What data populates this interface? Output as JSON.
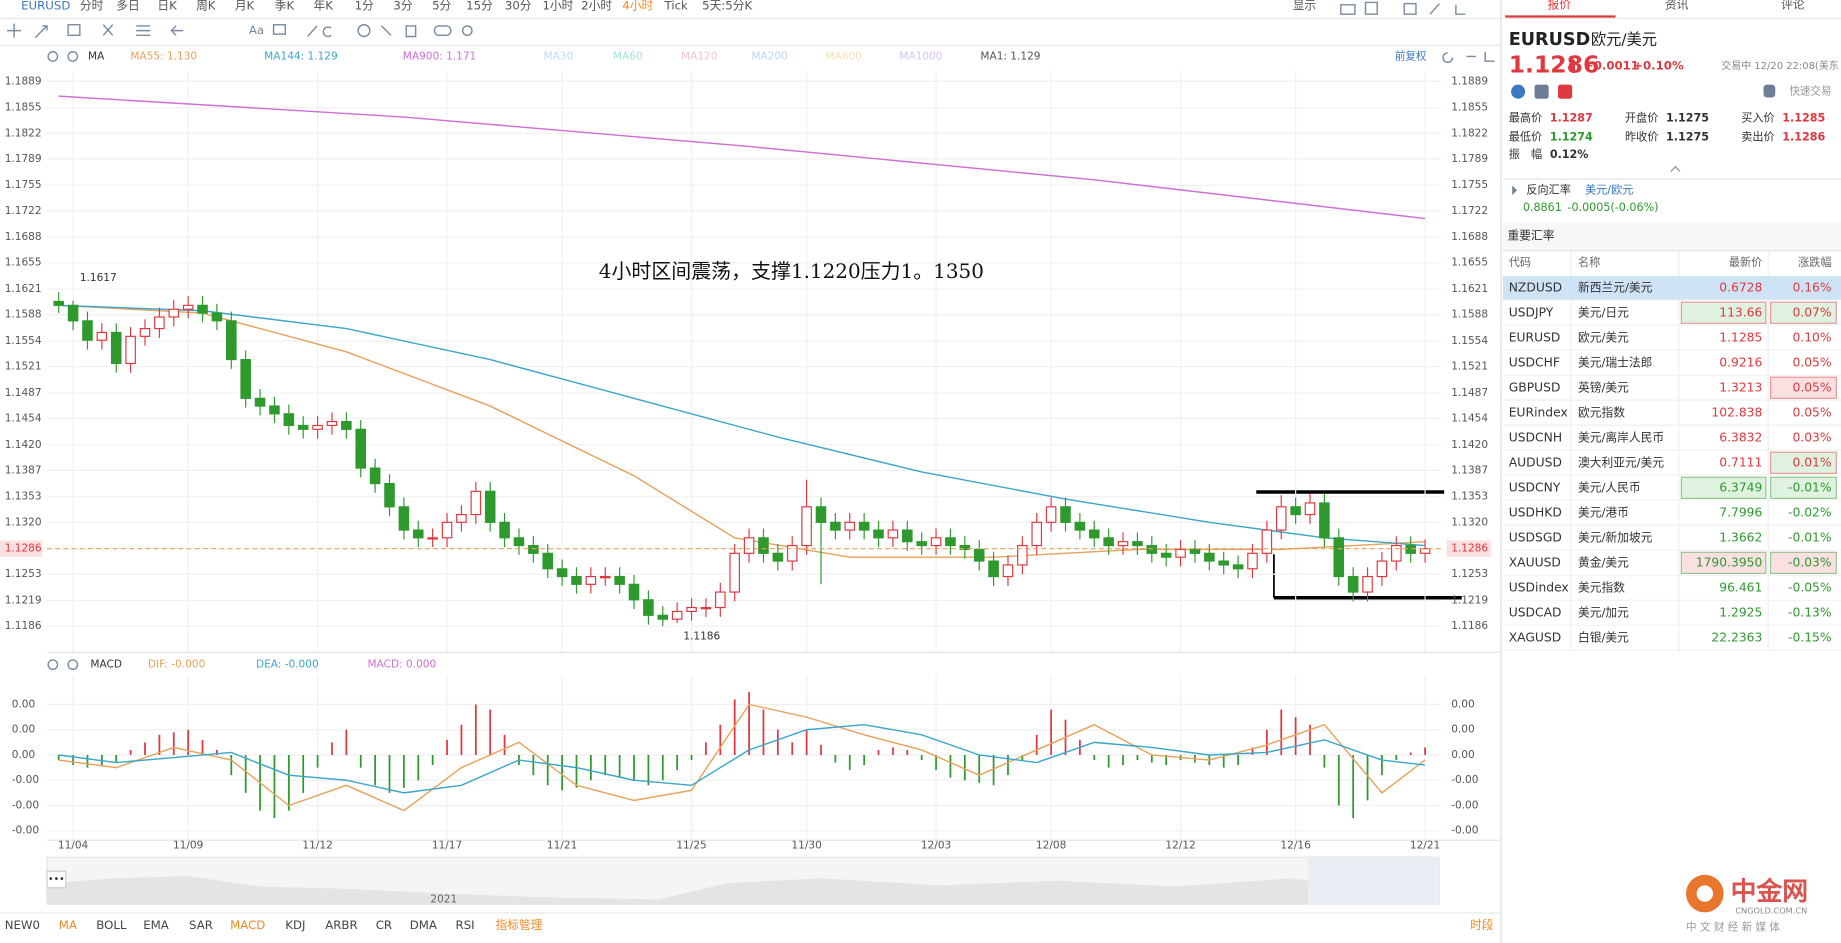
{
  "toolbar": {
    "symbol": "EURUSD",
    "periods": [
      "分时",
      "多日",
      "日K",
      "周K",
      "月K",
      "季K",
      "年K",
      "1分",
      "3分",
      "5分",
      "15分",
      "30分",
      "1小时",
      "2小时",
      "4小时",
      "Tick",
      "5天:5分K"
    ],
    "display": "显示",
    "text_tool": "Aa"
  },
  "chart_data": {
    "type": "candlestick",
    "ma_title": "MA",
    "adjust": "前复权",
    "ma": [
      {
        "label": "MA55: 1.130",
        "color": "#e8a15a",
        "x": [
          0,
          10,
          20,
          30,
          40,
          47,
          55,
          65,
          75,
          85,
          95
        ],
        "values": [
          1.16,
          1.159,
          1.154,
          1.147,
          1.138,
          1.13,
          1.1275,
          1.1275,
          1.1285,
          1.1285,
          1.1295
        ]
      },
      {
        "label": "MA144: 1.129",
        "color": "#3aa6c9",
        "x": [
          0,
          10,
          20,
          30,
          40,
          50,
          60,
          70,
          80,
          88,
          95
        ],
        "values": [
          1.16,
          1.1593,
          1.157,
          1.153,
          1.148,
          1.143,
          1.1385,
          1.135,
          1.132,
          1.13,
          1.129
        ]
      },
      {
        "label": "MA900: 1.171",
        "color": "#cf6fd6",
        "x": [
          0,
          24,
          48,
          72,
          95
        ],
        "values": [
          1.187,
          1.1843,
          1.1805,
          1.1762,
          1.1712
        ]
      },
      {
        "label": "MA30",
        "color": "#b9dff0"
      },
      {
        "label": "MA60",
        "color": "#a8e0dc"
      },
      {
        "label": "MA120",
        "color": "#f3c3cf"
      },
      {
        "label": "MA200",
        "color": "#b9d6f3"
      },
      {
        "label": "MA600",
        "color": "#f1e3b0"
      },
      {
        "label": "MA1000",
        "color": "#d7c3ef"
      },
      {
        "label": "MA1: 1.129",
        "color": "#555555"
      }
    ],
    "categories": [
      null,
      "11/04",
      null,
      null,
      null,
      null,
      null,
      null,
      null,
      "11/09",
      null,
      null,
      null,
      null,
      null,
      null,
      null,
      null,
      "11/12",
      null,
      null,
      null,
      null,
      null,
      null,
      null,
      null,
      "11/17",
      null,
      null,
      null,
      null,
      null,
      null,
      null,
      "11/21",
      null,
      null,
      null,
      null,
      null,
      null,
      null,
      null,
      "11/25",
      null,
      null,
      null,
      null,
      null,
      null,
      null,
      "11/30",
      null,
      null,
      null,
      null,
      null,
      null,
      null,
      null,
      "12/03",
      null,
      null,
      null,
      null,
      null,
      null,
      null,
      "12/08",
      null,
      null,
      null,
      null,
      null,
      null,
      null,
      null,
      "12/12",
      null,
      null,
      null,
      null,
      null,
      null,
      null,
      "12/16",
      null,
      null,
      null,
      null,
      null,
      null,
      null,
      null,
      "12/21"
    ],
    "open": [
      1.1605,
      1.16,
      1.158,
      1.1555,
      1.1565,
      1.1525,
      1.156,
      1.157,
      1.1585,
      1.1595,
      1.16,
      1.159,
      1.158,
      1.153,
      1.148,
      1.147,
      1.146,
      1.1445,
      1.144,
      1.1445,
      1.145,
      1.144,
      1.139,
      1.137,
      1.134,
      1.131,
      1.13,
      1.13,
      1.132,
      1.133,
      1.136,
      1.132,
      1.13,
      1.129,
      1.128,
      1.126,
      1.125,
      1.124,
      1.125,
      1.125,
      1.124,
      1.122,
      1.12,
      1.1195,
      1.1205,
      1.121,
      1.121,
      1.123,
      1.128,
      1.13,
      1.128,
      1.127,
      1.129,
      1.134,
      1.132,
      1.131,
      1.132,
      1.131,
      1.13,
      1.131,
      1.1295,
      1.129,
      1.13,
      1.129,
      1.1285,
      1.127,
      1.125,
      1.1265,
      1.129,
      1.132,
      1.134,
      1.132,
      1.131,
      1.13,
      1.129,
      1.1295,
      1.129,
      1.128,
      1.1275,
      1.1285,
      1.128,
      1.127,
      1.1265,
      1.126,
      1.128,
      1.131,
      1.134,
      1.133,
      1.1345,
      1.13,
      1.125,
      1.123,
      1.125,
      1.127,
      1.129,
      1.128
    ],
    "high": [
      1.1617,
      1.1606,
      1.1592,
      1.1577,
      1.1577,
      1.1572,
      1.1582,
      1.1597,
      1.1607,
      1.1612,
      1.1612,
      1.1602,
      1.1592,
      1.1542,
      1.1492,
      1.1482,
      1.1472,
      1.1457,
      1.1457,
      1.1462,
      1.1462,
      1.1452,
      1.1402,
      1.1382,
      1.1352,
      1.1322,
      1.1312,
      1.1332,
      1.1342,
      1.1372,
      1.1372,
      1.1332,
      1.1312,
      1.1302,
      1.1292,
      1.1272,
      1.1262,
      1.1262,
      1.1262,
      1.1262,
      1.1252,
      1.1232,
      1.1212,
      1.1217,
      1.1222,
      1.1222,
      1.1242,
      1.1292,
      1.1312,
      1.1312,
      1.1292,
      1.1302,
      1.1375,
      1.1352,
      1.1332,
      1.1332,
      1.1332,
      1.1322,
      1.1322,
      1.1322,
      1.1307,
      1.1312,
      1.1312,
      1.1302,
      1.1297,
      1.1282,
      1.1277,
      1.1302,
      1.1332,
      1.1352,
      1.1352,
      1.1332,
      1.1322,
      1.1312,
      1.1307,
      1.1307,
      1.1302,
      1.1292,
      1.1297,
      1.1297,
      1.1292,
      1.1282,
      1.1277,
      1.1292,
      1.1322,
      1.1355,
      1.1352,
      1.1357,
      1.1357,
      1.1312,
      1.1262,
      1.1262,
      1.1282,
      1.1302,
      1.1302,
      1.1298
    ],
    "low": [
      1.159,
      1.1568,
      1.1543,
      1.1543,
      1.1513,
      1.1513,
      1.1548,
      1.1558,
      1.1573,
      1.1583,
      1.1578,
      1.1568,
      1.1518,
      1.1468,
      1.1458,
      1.1448,
      1.1433,
      1.1428,
      1.1428,
      1.1433,
      1.1428,
      1.1378,
      1.1358,
      1.1328,
      1.1298,
      1.1288,
      1.1288,
      1.1288,
      1.1308,
      1.1318,
      1.1308,
      1.1288,
      1.1278,
      1.1268,
      1.1248,
      1.1238,
      1.1228,
      1.1228,
      1.1238,
      1.1228,
      1.1208,
      1.1188,
      1.1186,
      1.119,
      1.1193,
      1.1198,
      1.1198,
      1.1218,
      1.1268,
      1.1268,
      1.1258,
      1.1258,
      1.1278,
      1.124,
      1.1298,
      1.1298,
      1.1298,
      1.1288,
      1.1288,
      1.1283,
      1.1278,
      1.1278,
      1.1278,
      1.1273,
      1.1258,
      1.1238,
      1.1238,
      1.1253,
      1.1278,
      1.1308,
      1.1308,
      1.1298,
      1.1288,
      1.1278,
      1.1278,
      1.1278,
      1.1268,
      1.1263,
      1.1263,
      1.1268,
      1.1258,
      1.1253,
      1.1248,
      1.1248,
      1.1268,
      1.1298,
      1.1318,
      1.1318,
      1.1288,
      1.1238,
      1.1218,
      1.1218,
      1.1238,
      1.1258,
      1.1268,
      1.1268
    ],
    "close": [
      1.16,
      1.158,
      1.1555,
      1.1565,
      1.1525,
      1.156,
      1.157,
      1.1585,
      1.1595,
      1.16,
      1.159,
      1.158,
      1.153,
      1.148,
      1.147,
      1.146,
      1.1445,
      1.144,
      1.1445,
      1.145,
      1.144,
      1.139,
      1.137,
      1.134,
      1.131,
      1.13,
      1.13,
      1.132,
      1.133,
      1.136,
      1.132,
      1.13,
      1.129,
      1.128,
      1.126,
      1.125,
      1.124,
      1.125,
      1.125,
      1.124,
      1.122,
      1.12,
      1.1195,
      1.1205,
      1.121,
      1.121,
      1.123,
      1.128,
      1.13,
      1.128,
      1.127,
      1.129,
      1.134,
      1.132,
      1.131,
      1.132,
      1.131,
      1.13,
      1.131,
      1.1295,
      1.129,
      1.13,
      1.129,
      1.1285,
      1.127,
      1.125,
      1.1265,
      1.129,
      1.132,
      1.134,
      1.132,
      1.131,
      1.13,
      1.129,
      1.1295,
      1.129,
      1.128,
      1.1275,
      1.1285,
      1.128,
      1.127,
      1.1265,
      1.126,
      1.128,
      1.131,
      1.134,
      1.133,
      1.1345,
      1.13,
      1.125,
      1.123,
      1.125,
      1.127,
      1.129,
      1.128,
      1.1286
    ],
    "up_color": "#e0383e",
    "down_color": "#2e9a2e",
    "ylim": [
      1.1153,
      1.1903
    ],
    "yticks": [
      1.1889,
      1.1855,
      1.1822,
      1.1789,
      1.1755,
      1.1722,
      1.1688,
      1.1655,
      1.1621,
      1.1588,
      1.1554,
      1.1521,
      1.1487,
      1.1454,
      {
        "value": 1.142,
        "label": "1.1420"
      },
      1.1387,
      1.1353,
      {
        "value": 1.132,
        "label": "1.1320"
      },
      1.1286,
      1.1253,
      1.1219,
      1.1186
    ],
    "grid": true,
    "last_price": 1.1286,
    "high_label": 1.1617,
    "low_label": 1.1186,
    "annotation": "4小时区间震荡，支撑1.1220压力1。1350",
    "macd": {
      "title": "MACD",
      "dif_label": "DIF: -0.000",
      "dea_label": "DEA: -0.000",
      "macd_label": "MACD: 0.000",
      "ylim": [
        -0.00335,
        0.00316
      ],
      "yticks": [
        {
          "value": 0.002,
          "label": "0.00"
        },
        {
          "value": 0.001,
          "label": "0.00"
        },
        {
          "value": 0,
          "label": "0.00"
        },
        {
          "value": -0.001,
          "label": "-0.00"
        },
        {
          "value": -0.002,
          "label": "-0.00"
        },
        {
          "value": -0.003,
          "label": "-0.00"
        }
      ],
      "histogram": [
        -0.0002,
        -0.0004,
        -0.0005,
        -0.0004,
        -0.0003,
        0.0002,
        0.0005,
        0.0008,
        0.0009,
        0.001,
        0.0006,
        0.0002,
        -0.0008,
        -0.0015,
        -0.0022,
        -0.0025,
        -0.0022,
        -0.0015,
        -0.0005,
        0.0005,
        0.001,
        -0.0005,
        -0.0012,
        -0.0015,
        -0.0013,
        -0.001,
        -0.0004,
        0.0006,
        0.0012,
        0.002,
        0.0018,
        0.0008,
        -0.0004,
        -0.0008,
        -0.0012,
        -0.0014,
        -0.0013,
        -0.001,
        -0.0008,
        -0.0009,
        -0.001,
        -0.0012,
        -0.001,
        -0.0006,
        -0.0002,
        0.0005,
        0.0012,
        0.0022,
        0.0025,
        0.0018,
        0.001,
        0.0005,
        0.001,
        0.0004,
        -0.0003,
        -0.0006,
        -0.0004,
        0.0002,
        0.0003,
        0.0002,
        -0.0002,
        -0.0006,
        -0.0009,
        -0.001,
        -0.0011,
        -0.0012,
        -0.0008,
        -0.0002,
        0.0008,
        0.0018,
        0.0014,
        0.0006,
        -0.0002,
        -0.0005,
        -0.0004,
        -0.0002,
        -0.0003,
        -0.0004,
        -0.0002,
        -0.0003,
        -0.0004,
        -0.0005,
        -0.0004,
        0.0003,
        0.001,
        0.0018,
        0.0015,
        0.0012,
        -0.0005,
        -0.002,
        -0.0025,
        -0.0018,
        -0.0008,
        -0.0002,
        0.0001,
        0.0003
      ],
      "x": [
        0,
        4,
        8,
        12,
        16,
        20,
        24,
        28,
        32,
        36,
        40,
        44,
        48,
        52,
        56,
        60,
        64,
        68,
        72,
        76,
        80,
        84,
        88,
        92,
        95
      ],
      "dif": {
        "color": "#e8a15a",
        "values": [
          -0.0002,
          -0.0005,
          0.0003,
          -0.0002,
          -0.002,
          -0.0012,
          -0.0022,
          -0.0005,
          0.0005,
          -0.0012,
          -0.0018,
          -0.0014,
          0.002,
          0.0015,
          0.0008,
          0.0002,
          -0.0008,
          0.0002,
          0.0012,
          0,
          -0.0002,
          0.0004,
          0.0012,
          -0.0015,
          -0.0002
        ]
      },
      "dea": {
        "color": "#3aa6c9",
        "values": [
          0,
          -0.0003,
          -0.0001,
          0.0001,
          -0.0008,
          -0.001,
          -0.0015,
          -0.0012,
          -0.0002,
          -0.0005,
          -0.001,
          -0.0012,
          0.0002,
          0.001,
          0.0012,
          0.0008,
          0,
          -0.0003,
          0.0005,
          0.0003,
          0,
          0.0001,
          0.0006,
          -0.0002,
          -0.0004
        ]
      }
    }
  },
  "navigator": {
    "year": "2021"
  },
  "indicators": {
    "items": [
      "NEW0",
      "MA",
      "BOLL",
      "EMA",
      "SAR",
      "MACD",
      "KDJ",
      "ARBR",
      "CR",
      "DMA",
      "RSI"
    ],
    "manage": "指标管理",
    "session": "时段"
  },
  "quote": {
    "tabs": [
      "报价",
      "资讯",
      "评论"
    ],
    "symbol": "EURUSD",
    "name": "欧元/美元",
    "price": "1.1286",
    "change": "+0.0011",
    "change_pct": "+0.10%",
    "status": "交易中 12/20 22:08(美东",
    "quick_trade": "快速交易",
    "stats": [
      {
        "label": "最高价",
        "value": "1.1287",
        "color": "#e0383e"
      },
      {
        "label": "开盘价",
        "value": "1.1275",
        "color": "#333333"
      },
      {
        "label": "买入价",
        "value": "1.1285",
        "color": "#e0383e"
      },
      {
        "label": "最低价",
        "value": "1.1274",
        "color": "#2e9a2e"
      },
      {
        "label": "昨收价",
        "value": "1.1275",
        "color": "#333333"
      },
      {
        "label": "卖出价",
        "value": "1.1286",
        "color": "#e0383e"
      },
      {
        "label": "振　幅",
        "value": "0.12%",
        "color": "#333333"
      }
    ],
    "reverse": {
      "label": "反向汇率",
      "pair": "美元/欧元",
      "price": "0.8861",
      "change": "-0.0005(-0.06%)"
    }
  },
  "rates": {
    "title": "重要汇率",
    "headers": [
      "代码",
      "名称",
      "最新价",
      "涨跌幅"
    ],
    "rows": [
      {
        "code": "NZDUSD",
        "name": "新西兰元/美元",
        "price": "0.6728",
        "pct": "0.16%",
        "color": "#e0383e",
        "row_bg": "#cfe3f7"
      },
      {
        "code": "USDJPY",
        "name": "美元/日元",
        "price": "113.66",
        "pct": "0.07%",
        "color": "#e0383e",
        "price_box": "#dff2df",
        "pct_box": "#dff2df"
      },
      {
        "code": "EURUSD",
        "name": "欧元/美元",
        "price": "1.1285",
        "pct": "0.10%",
        "color": "#e0383e"
      },
      {
        "code": "USDCHF",
        "name": "美元/瑞士法郎",
        "price": "0.9216",
        "pct": "0.05%",
        "color": "#e0383e"
      },
      {
        "code": "GBPUSD",
        "name": "英镑/美元",
        "price": "1.3213",
        "pct": "0.05%",
        "color": "#e0383e",
        "pct_box": "#fbe0e2"
      },
      {
        "code": "EURindex",
        "name": "欧元指数",
        "price": "102.838",
        "pct": "0.05%",
        "color": "#e0383e"
      },
      {
        "code": "USDCNH",
        "name": "美元/离岸人民币",
        "price": "6.3832",
        "pct": "0.03%",
        "color": "#e0383e"
      },
      {
        "code": "AUDUSD",
        "name": "澳大利亚元/美元",
        "price": "0.7111",
        "pct": "0.01%",
        "color": "#e0383e",
        "pct_box": "#dff2df"
      },
      {
        "code": "USDCNY",
        "name": "美元/人民币",
        "price": "6.3749",
        "pct": "-0.01%",
        "color": "#2e9a2e",
        "price_box": "#dff2df",
        "pct_box": "#dff2df"
      },
      {
        "code": "USDHKD",
        "name": "美元/港币",
        "price": "7.7996",
        "pct": "-0.02%",
        "color": "#2e9a2e"
      },
      {
        "code": "USDSGD",
        "name": "美元/新加坡元",
        "price": "1.3662",
        "pct": "-0.01%",
        "color": "#2e9a2e"
      },
      {
        "code": "XAUUSD",
        "name": "黄金/美元",
        "price": "1790.3950",
        "pct": "-0.03%",
        "color": "#2e9a2e",
        "price_box": "#fbe0e2",
        "pct_box": "#fbe0e2"
      },
      {
        "code": "USDindex",
        "name": "美元指数",
        "price": "96.461",
        "pct": "-0.05%",
        "color": "#2e9a2e"
      },
      {
        "code": "USDCAD",
        "name": "美元/加元",
        "price": "1.2925",
        "pct": "-0.13%",
        "color": "#2e9a2e"
      },
      {
        "code": "XAGUSD",
        "name": "白银/美元",
        "price": "22.2363",
        "pct": "-0.15%",
        "color": "#2e9a2e"
      }
    ]
  },
  "logo": {
    "name": "中金网",
    "site": "CNGOLD.COM.CN",
    "slogan": "中 文 财 经 新 媒 体"
  }
}
